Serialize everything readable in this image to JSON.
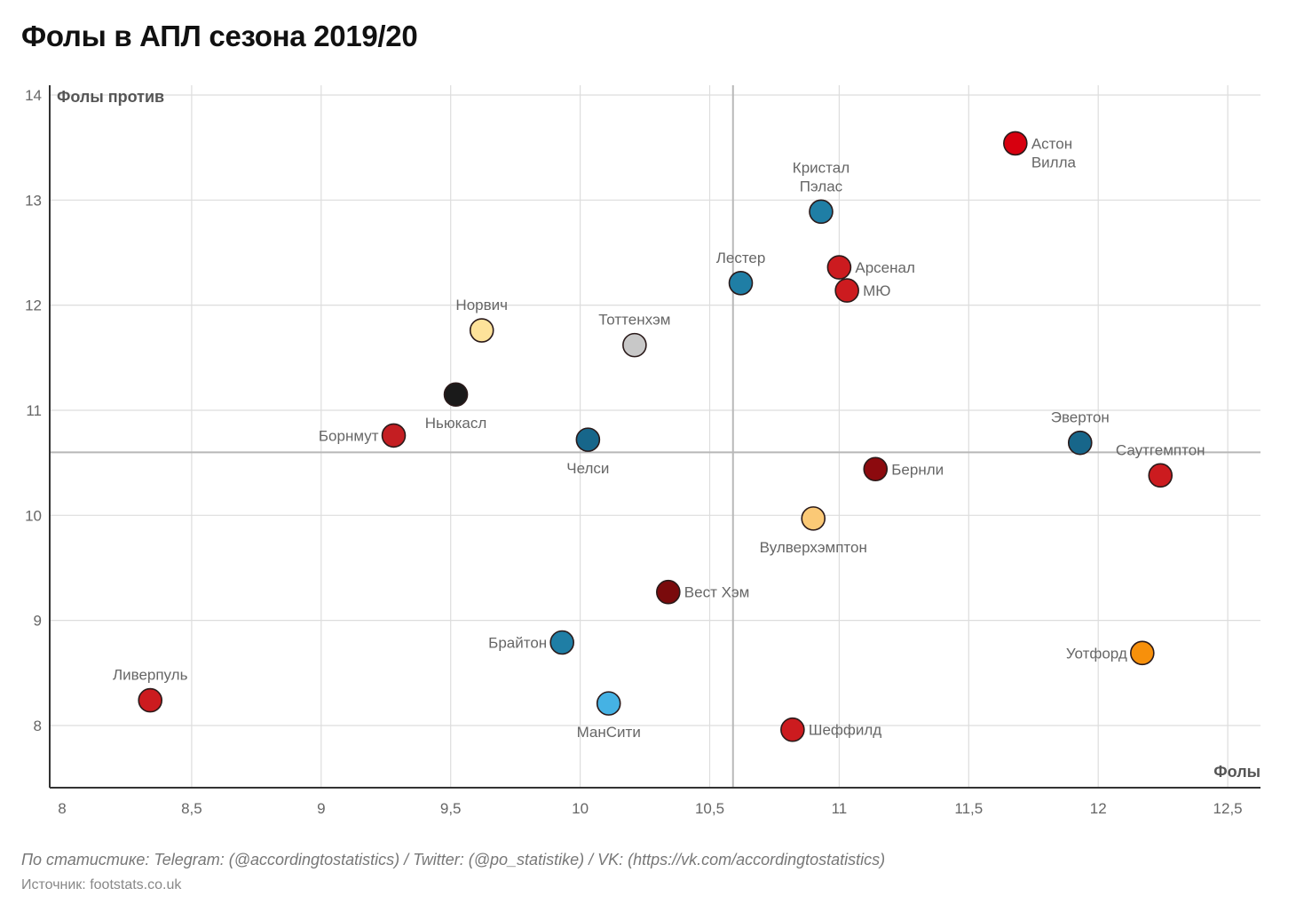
{
  "title": "Фолы в АПЛ сезона 2019/20",
  "footer": {
    "credits": "По статистике: Telegram: (@accordingtostatistics) / Twitter: (@po_statistike) / VK: (https://vk.com/accordingtostatistics)",
    "source": "Источник: footstats.co.uk"
  },
  "chart_data": {
    "type": "scatter",
    "title": "Фолы в АПЛ сезона 2019/20",
    "xlabel": "Фолы",
    "ylabel": "Фолы против",
    "xlim": [
      7.95,
      12.63
    ],
    "ylim": [
      7.4,
      14.1
    ],
    "x_ticks": [
      8,
      8.5,
      9,
      9.5,
      10,
      10.5,
      11,
      11.5,
      12,
      12.5
    ],
    "x_tick_labels": [
      "8",
      "8,5",
      "9",
      "9,5",
      "10",
      "10,5",
      "11",
      "11,5",
      "12",
      "12,5"
    ],
    "y_ticks": [
      8,
      9,
      10,
      11,
      12,
      13,
      14
    ],
    "y_tick_labels": [
      "8",
      "9",
      "10",
      "11",
      "12",
      "13",
      "14"
    ],
    "grid": true,
    "reference_lines": {
      "x": 10.59,
      "y": 10.6
    },
    "points": [
      {
        "name": "Астон Вилла",
        "lines": [
          "Астон",
          "Вилла"
        ],
        "x": 11.68,
        "y": 13.54,
        "color": "#d7000f",
        "label_pos": "right"
      },
      {
        "name": "Кристал Пэлас",
        "lines": [
          "Кристал",
          "Пэлас"
        ],
        "x": 10.93,
        "y": 12.89,
        "color": "#1f7ea5",
        "label_pos": "top"
      },
      {
        "name": "Лестер",
        "lines": [
          "Лестер"
        ],
        "x": 10.62,
        "y": 12.21,
        "color": "#1f7ea5",
        "label_pos": "top"
      },
      {
        "name": "Арсенал",
        "lines": [
          "Арсенал"
        ],
        "x": 11.0,
        "y": 12.36,
        "color": "#cc1b1f",
        "label_pos": "right"
      },
      {
        "name": "МЮ",
        "lines": [
          "МЮ"
        ],
        "x": 11.03,
        "y": 12.14,
        "color": "#cc1b1f",
        "label_pos": "right"
      },
      {
        "name": "Норвич",
        "lines": [
          "Норвич"
        ],
        "x": 9.62,
        "y": 11.76,
        "color": "#fde29a",
        "label_pos": "top"
      },
      {
        "name": "Тоттенхэм",
        "lines": [
          "Тоттенхэм"
        ],
        "x": 10.21,
        "y": 11.62,
        "color": "#c8c8c8",
        "label_pos": "top"
      },
      {
        "name": "Ньюкасл",
        "lines": [
          "Ньюкасл"
        ],
        "x": 9.52,
        "y": 11.15,
        "color": "#1a1a1a",
        "label_pos": "bottom"
      },
      {
        "name": "Борнмут",
        "lines": [
          "Борнмут"
        ],
        "x": 9.28,
        "y": 10.76,
        "color": "#c41e22",
        "label_pos": "left"
      },
      {
        "name": "Челси",
        "lines": [
          "Челси"
        ],
        "x": 10.03,
        "y": 10.72,
        "color": "#17668a",
        "label_pos": "bottom"
      },
      {
        "name": "Эвертон",
        "lines": [
          "Эвертон"
        ],
        "x": 11.93,
        "y": 10.69,
        "color": "#17668a",
        "label_pos": "top"
      },
      {
        "name": "Саутгемптон",
        "lines": [
          "Саутгемптон"
        ],
        "x": 12.24,
        "y": 10.38,
        "color": "#cc1b1f",
        "label_pos": "top"
      },
      {
        "name": "Бернли",
        "lines": [
          "Бернли"
        ],
        "x": 11.14,
        "y": 10.44,
        "color": "#8c0a0e",
        "label_pos": "right"
      },
      {
        "name": "Вулверхэмптон",
        "lines": [
          "Вулверхэмптон"
        ],
        "x": 10.9,
        "y": 9.97,
        "color": "#fbc976",
        "label_pos": "bottom"
      },
      {
        "name": "Вест Хэм",
        "lines": [
          "Вест Хэм"
        ],
        "x": 10.34,
        "y": 9.27,
        "color": "#7a0a0c",
        "label_pos": "right"
      },
      {
        "name": "Брайтон",
        "lines": [
          "Брайтон"
        ],
        "x": 9.93,
        "y": 8.79,
        "color": "#1f7ea5",
        "label_pos": "left"
      },
      {
        "name": "МанСити",
        "lines": [
          "МанСити"
        ],
        "x": 10.11,
        "y": 8.21,
        "color": "#45b2e4",
        "label_pos": "bottom"
      },
      {
        "name": "Ливерпуль",
        "lines": [
          "Ливерпуль"
        ],
        "x": 8.34,
        "y": 8.24,
        "color": "#cc1b1f",
        "label_pos": "top"
      },
      {
        "name": "Шеффилд",
        "lines": [
          "Шеффилд"
        ],
        "x": 10.82,
        "y": 7.96,
        "color": "#cc1b1f",
        "label_pos": "right"
      },
      {
        "name": "Уотфорд",
        "lines": [
          "Уотфорд"
        ],
        "x": 12.17,
        "y": 8.69,
        "color": "#f7900b",
        "label_pos": "left"
      }
    ]
  }
}
